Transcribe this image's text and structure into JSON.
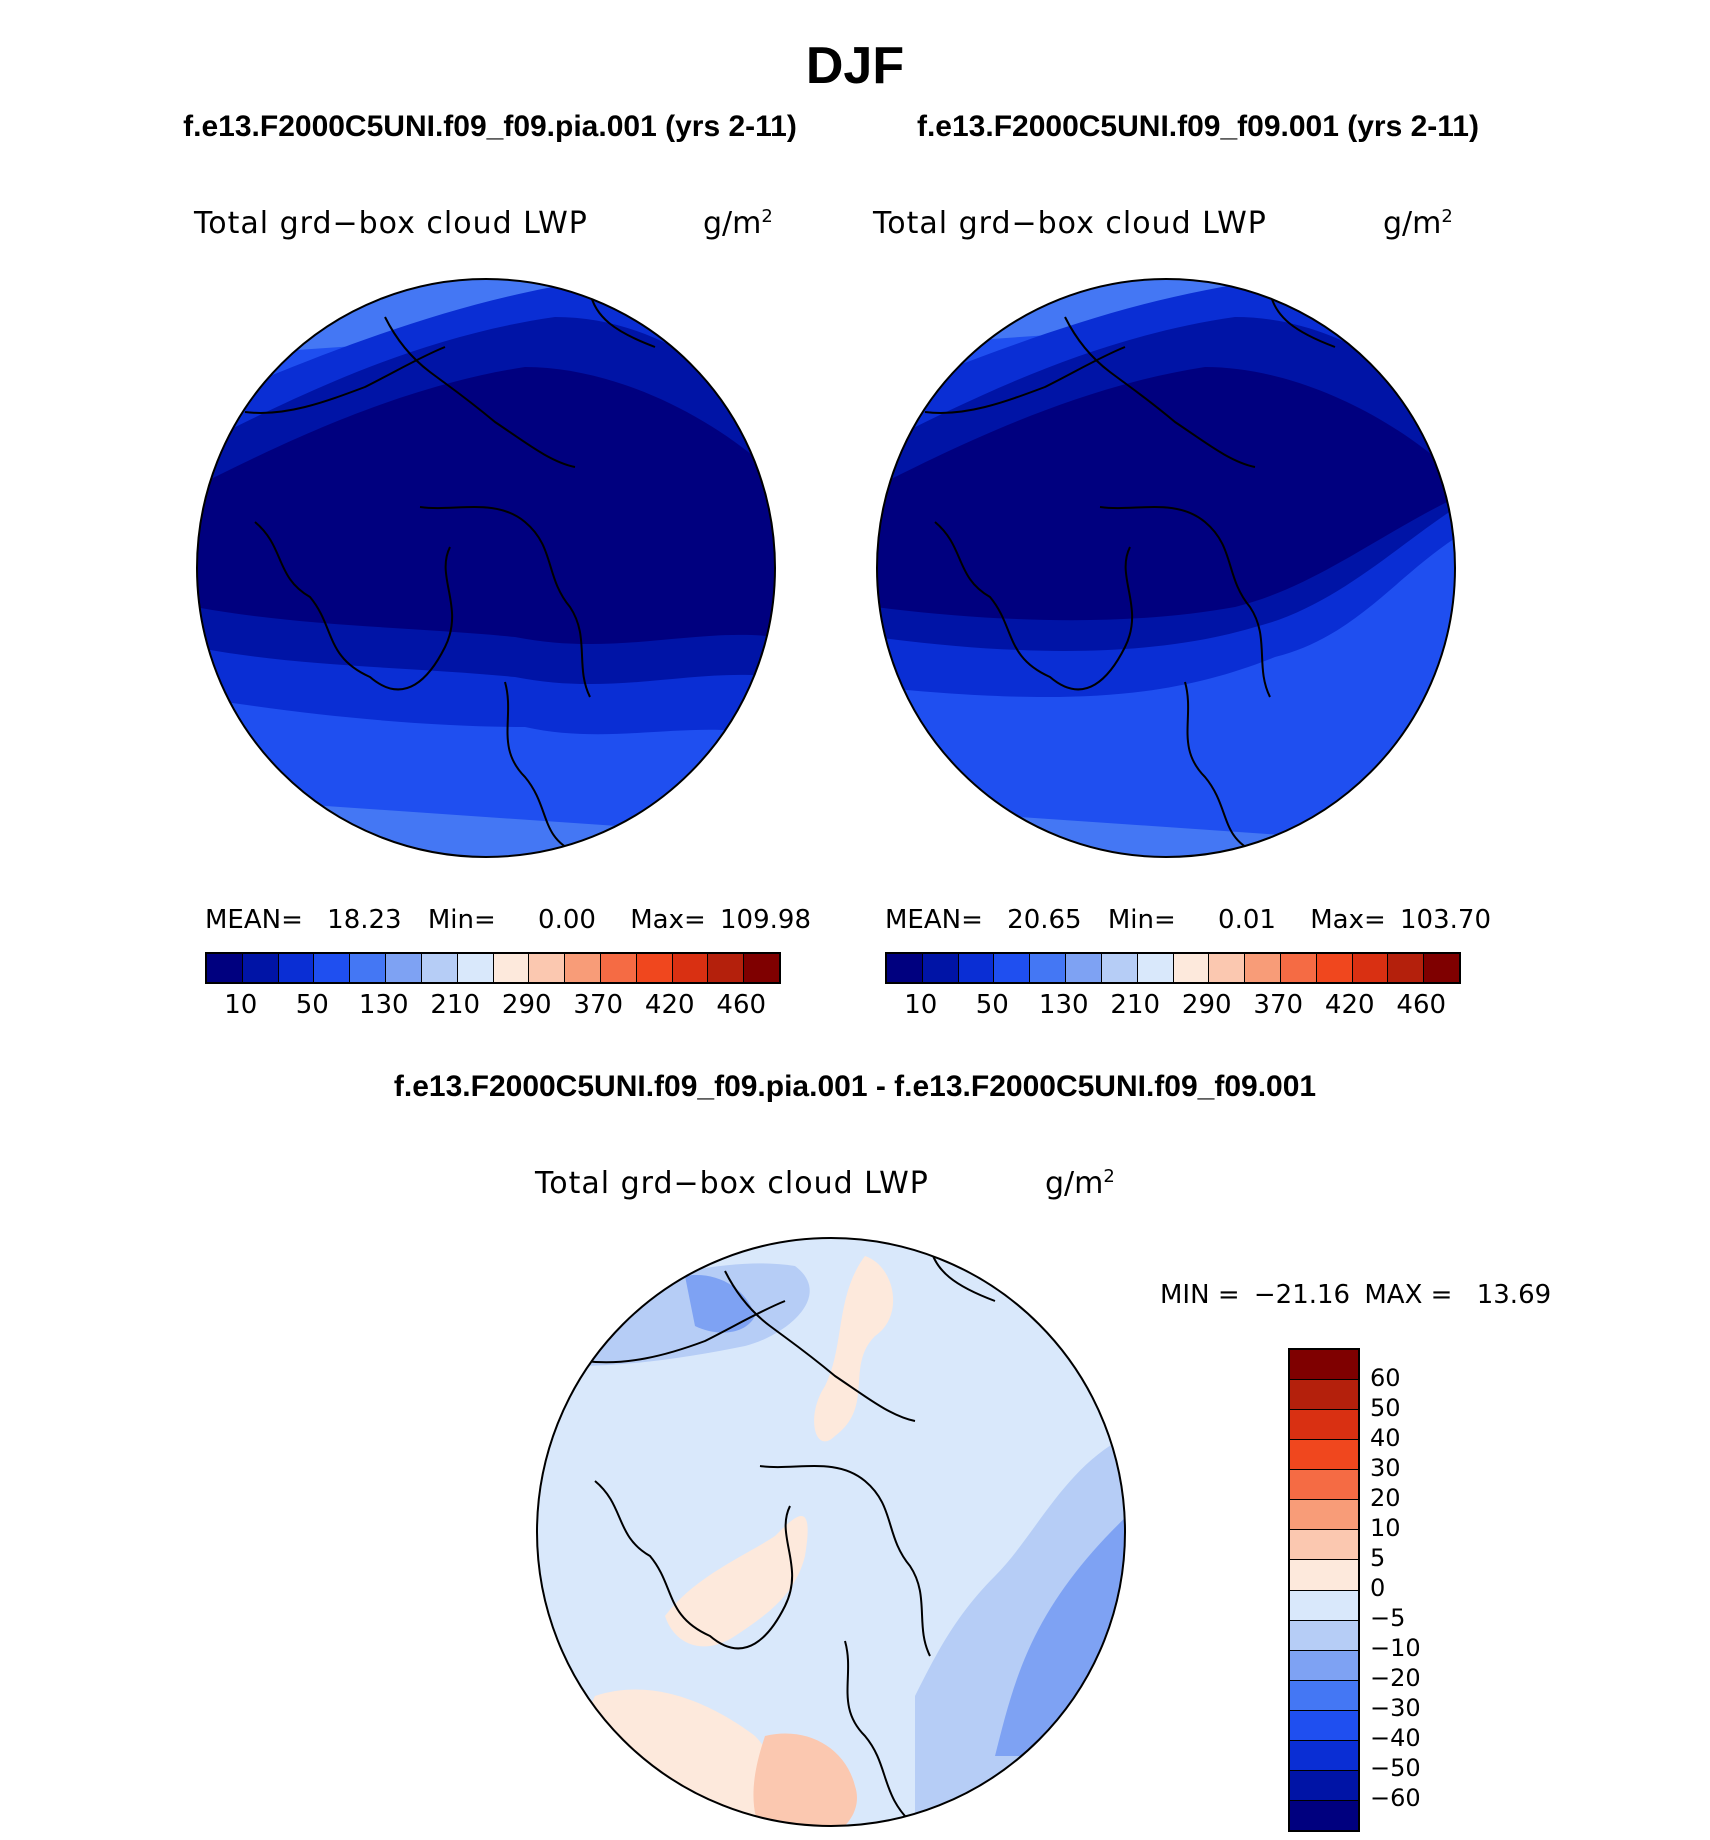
{
  "season": "DJF",
  "panels": [
    {
      "case": "f.e13.F2000C5UNI.f09_f09.pia.001 (yrs 2-11)",
      "variable": "Total grd−box cloud LWP",
      "units": "g/m",
      "units_exp": "2",
      "stats": {
        "mean_label": "MEAN=",
        "mean": "18.23",
        "min_label": "Min=",
        "min": "0.00",
        "max_label": "Max=",
        "max": "109.98"
      }
    },
    {
      "case": "f.e13.F2000C5UNI.f09_f09.001 (yrs 2-11)",
      "variable": "Total grd−box cloud LWP",
      "units": "g/m",
      "units_exp": "2",
      "stats": {
        "mean_label": "MEAN=",
        "mean": "20.65",
        "min_label": "Min=",
        "min": "0.01",
        "max_label": "Max=",
        "max": "103.70"
      }
    }
  ],
  "abs_colorbar": {
    "colors": [
      "#00007f",
      "#0014a6",
      "#0a2ed4",
      "#1f4ff0",
      "#4477f4",
      "#7ea2f3",
      "#b6cdf6",
      "#d9e8fb",
      "#fde9dc",
      "#fbc8b0",
      "#f89c78",
      "#f56b44",
      "#f0471e",
      "#d93012",
      "#b4200c",
      "#7f0000"
    ],
    "tick_labels": [
      "10",
      "50",
      "130",
      "210",
      "290",
      "370",
      "420",
      "460"
    ]
  },
  "diff_panel": {
    "title": "f.e13.F2000C5UNI.f09_f09.pia.001 - f.e13.F2000C5UNI.f09_f09.001",
    "variable": "Total grd−box cloud LWP",
    "units": "g/m",
    "units_exp": "2",
    "stats": {
      "min_label": "MIN =",
      "min": "−21.16",
      "max_label": "MAX =",
      "max": "13.69"
    }
  },
  "diff_colorbar": {
    "colors_top_to_bottom": [
      "#7f0000",
      "#b4200c",
      "#d93012",
      "#f0471e",
      "#f56b44",
      "#f89c78",
      "#fbc8b0",
      "#fde9dc",
      "#d9e8fb",
      "#b6cdf6",
      "#7ea2f3",
      "#4477f4",
      "#1f4ff0",
      "#0a2ed4",
      "#0014a6",
      "#00007f"
    ],
    "tick_labels_top_to_bottom": [
      "60",
      "50",
      "40",
      "30",
      "20",
      "10",
      "5",
      "0",
      "−5",
      "−10",
      "−20",
      "−30",
      "−40",
      "−50",
      "−60"
    ]
  },
  "map_colors": {
    "lwp_lowest": "#00007f",
    "lwp_low": "#0014a6",
    "lwp_mid": "#0a2ed4",
    "lwp_high": "#1f4ff0",
    "lwp_higher": "#4477f4",
    "diff_zero_neg": "#d9e8fb",
    "diff_neg5": "#b6cdf6",
    "diff_neg10": "#7ea2f3",
    "diff_pos0": "#fde9dc",
    "diff_pos5": "#fbc8b0"
  }
}
